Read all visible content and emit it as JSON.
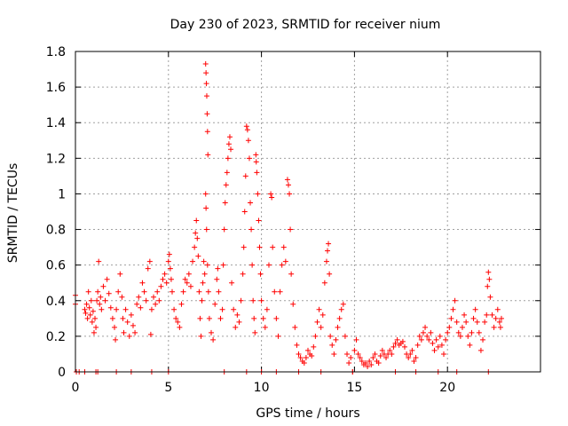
{
  "chart_data": {
    "type": "scatter",
    "title": "Day 230 of 2023, SRMTID for receiver nium",
    "xlabel": "GPS time / hours",
    "ylabel": "SRMTID / TECUs",
    "xlim": [
      0,
      25
    ],
    "ylim": [
      0,
      1.8
    ],
    "xticks": [
      0,
      5,
      10,
      15,
      20
    ],
    "yticks": [
      0,
      0.2,
      0.4,
      0.6,
      0.8,
      1,
      1.2,
      1.4,
      1.6,
      1.8
    ],
    "xtick_labels": [
      "0",
      "5",
      "10",
      "15",
      "20"
    ],
    "ytick_labels": [
      "0",
      "0.2",
      "0.4",
      "0.6",
      "0.8",
      "1",
      "1.2",
      "1.4",
      "1.6",
      "1.8"
    ],
    "grid": true,
    "marker": "+",
    "color": "#ff0000",
    "series": [
      {
        "name": "SRMTID",
        "points": [
          [
            0.0,
            0.43
          ],
          [
            0.0,
            0.38
          ],
          [
            0.05,
            0.0
          ],
          [
            0.2,
            0.0
          ],
          [
            0.5,
            0.0
          ],
          [
            1.1,
            0.0
          ],
          [
            0.5,
            0.35
          ],
          [
            0.55,
            0.33
          ],
          [
            0.6,
            0.38
          ],
          [
            0.65,
            0.3
          ],
          [
            0.7,
            0.45
          ],
          [
            0.75,
            0.36
          ],
          [
            0.8,
            0.32
          ],
          [
            0.85,
            0.4
          ],
          [
            0.9,
            0.28
          ],
          [
            0.95,
            0.34
          ],
          [
            1.0,
            0.22
          ],
          [
            1.05,
            0.3
          ],
          [
            1.1,
            0.25
          ],
          [
            1.15,
            0.4
          ],
          [
            1.2,
            0.45
          ],
          [
            1.25,
            0.62
          ],
          [
            1.3,
            0.38
          ],
          [
            1.35,
            0.42
          ],
          [
            1.4,
            0.35
          ],
          [
            1.5,
            0.48
          ],
          [
            1.6,
            0.4
          ],
          [
            1.7,
            0.52
          ],
          [
            1.8,
            0.44
          ],
          [
            1.9,
            0.36
          ],
          [
            2.0,
            0.3
          ],
          [
            2.1,
            0.25
          ],
          [
            2.15,
            0.18
          ],
          [
            2.2,
            0.35
          ],
          [
            2.3,
            0.45
          ],
          [
            2.4,
            0.55
          ],
          [
            2.5,
            0.42
          ],
          [
            2.55,
            0.3
          ],
          [
            2.6,
            0.22
          ],
          [
            2.7,
            0.35
          ],
          [
            2.8,
            0.28
          ],
          [
            2.9,
            0.2
          ],
          [
            3.0,
            0.32
          ],
          [
            3.1,
            0.26
          ],
          [
            3.2,
            0.22
          ],
          [
            3.3,
            0.38
          ],
          [
            3.4,
            0.42
          ],
          [
            3.5,
            0.36
          ],
          [
            3.6,
            0.5
          ],
          [
            3.7,
            0.45
          ],
          [
            3.8,
            0.4
          ],
          [
            3.9,
            0.58
          ],
          [
            4.0,
            0.62
          ],
          [
            4.05,
            0.21
          ],
          [
            4.1,
            0.35
          ],
          [
            4.2,
            0.42
          ],
          [
            4.3,
            0.38
          ],
          [
            4.4,
            0.45
          ],
          [
            4.5,
            0.4
          ],
          [
            4.6,
            0.48
          ],
          [
            4.7,
            0.52
          ],
          [
            4.8,
            0.55
          ],
          [
            4.9,
            0.5
          ],
          [
            5.0,
            0.62
          ],
          [
            5.05,
            0.66
          ],
          [
            5.1,
            0.58
          ],
          [
            5.15,
            0.52
          ],
          [
            5.2,
            0.45
          ],
          [
            5.3,
            0.35
          ],
          [
            5.4,
            0.3
          ],
          [
            5.5,
            0.28
          ],
          [
            5.6,
            0.25
          ],
          [
            5.7,
            0.38
          ],
          [
            5.8,
            0.45
          ],
          [
            5.9,
            0.52
          ],
          [
            6.0,
            0.5
          ],
          [
            6.1,
            0.55
          ],
          [
            6.2,
            0.48
          ],
          [
            6.3,
            0.62
          ],
          [
            6.4,
            0.7
          ],
          [
            6.45,
            0.78
          ],
          [
            6.5,
            0.85
          ],
          [
            6.55,
            0.75
          ],
          [
            6.6,
            0.65
          ],
          [
            6.65,
            0.45
          ],
          [
            6.7,
            0.3
          ],
          [
            6.75,
            0.2
          ],
          [
            6.8,
            0.4
          ],
          [
            6.85,
            0.5
          ],
          [
            6.9,
            0.62
          ],
          [
            6.95,
            0.55
          ],
          [
            7.0,
            1.73
          ],
          [
            7.02,
            1.68
          ],
          [
            7.04,
            1.62
          ],
          [
            7.06,
            1.55
          ],
          [
            7.08,
            1.45
          ],
          [
            7.1,
            1.35
          ],
          [
            7.12,
            1.22
          ],
          [
            7.0,
            1.0
          ],
          [
            7.02,
            0.92
          ],
          [
            7.05,
            0.8
          ],
          [
            7.1,
            0.6
          ],
          [
            7.15,
            0.45
          ],
          [
            7.2,
            0.3
          ],
          [
            7.3,
            0.22
          ],
          [
            7.4,
            0.18
          ],
          [
            7.5,
            0.38
          ],
          [
            7.6,
            0.52
          ],
          [
            7.65,
            0.58
          ],
          [
            7.7,
            0.45
          ],
          [
            7.8,
            0.3
          ],
          [
            7.9,
            0.35
          ],
          [
            7.95,
            0.6
          ],
          [
            8.0,
            0.8
          ],
          [
            8.05,
            0.95
          ],
          [
            8.1,
            1.05
          ],
          [
            8.15,
            1.12
          ],
          [
            8.2,
            1.2
          ],
          [
            8.25,
            1.28
          ],
          [
            8.3,
            1.32
          ],
          [
            8.35,
            1.25
          ],
          [
            8.4,
            0.5
          ],
          [
            8.5,
            0.35
          ],
          [
            8.6,
            0.25
          ],
          [
            8.7,
            0.32
          ],
          [
            8.8,
            0.28
          ],
          [
            8.9,
            0.4
          ],
          [
            9.0,
            0.55
          ],
          [
            9.05,
            0.7
          ],
          [
            9.1,
            0.9
          ],
          [
            9.15,
            1.1
          ],
          [
            9.2,
            1.38
          ],
          [
            9.25,
            1.36
          ],
          [
            9.3,
            1.3
          ],
          [
            9.35,
            1.2
          ],
          [
            9.4,
            0.95
          ],
          [
            9.45,
            0.8
          ],
          [
            9.5,
            0.6
          ],
          [
            9.55,
            0.4
          ],
          [
            9.6,
            0.3
          ],
          [
            9.65,
            0.22
          ],
          [
            9.7,
            1.22
          ],
          [
            9.72,
            1.18
          ],
          [
            9.75,
            1.12
          ],
          [
            9.8,
            1.0
          ],
          [
            9.85,
            0.85
          ],
          [
            9.9,
            0.7
          ],
          [
            9.95,
            0.55
          ],
          [
            10.0,
            0.4
          ],
          [
            10.1,
            0.3
          ],
          [
            10.2,
            0.25
          ],
          [
            10.3,
            0.35
          ],
          [
            10.4,
            0.6
          ],
          [
            10.5,
            1.0
          ],
          [
            10.55,
            0.98
          ],
          [
            10.6,
            0.7
          ],
          [
            10.7,
            0.45
          ],
          [
            10.8,
            0.3
          ],
          [
            10.9,
            0.2
          ],
          [
            11.0,
            0.45
          ],
          [
            11.1,
            0.6
          ],
          [
            11.2,
            0.7
          ],
          [
            11.3,
            0.62
          ],
          [
            11.4,
            1.08
          ],
          [
            11.45,
            1.05
          ],
          [
            11.5,
            1.0
          ],
          [
            11.55,
            0.8
          ],
          [
            11.6,
            0.55
          ],
          [
            11.7,
            0.38
          ],
          [
            11.8,
            0.25
          ],
          [
            11.9,
            0.15
          ],
          [
            12.0,
            0.1
          ],
          [
            12.1,
            0.08
          ],
          [
            12.2,
            0.06
          ],
          [
            12.3,
            0.05
          ],
          [
            12.4,
            0.08
          ],
          [
            12.5,
            0.12
          ],
          [
            12.6,
            0.1
          ],
          [
            12.7,
            0.09
          ],
          [
            12.8,
            0.14
          ],
          [
            12.9,
            0.2
          ],
          [
            13.0,
            0.28
          ],
          [
            13.1,
            0.35
          ],
          [
            13.2,
            0.25
          ],
          [
            13.3,
            0.32
          ],
          [
            13.4,
            0.5
          ],
          [
            13.5,
            0.62
          ],
          [
            13.55,
            0.68
          ],
          [
            13.6,
            0.72
          ],
          [
            13.65,
            0.55
          ],
          [
            13.7,
            0.2
          ],
          [
            13.8,
            0.15
          ],
          [
            13.9,
            0.1
          ],
          [
            14.0,
            0.18
          ],
          [
            14.1,
            0.25
          ],
          [
            14.2,
            0.3
          ],
          [
            14.3,
            0.35
          ],
          [
            14.4,
            0.38
          ],
          [
            14.5,
            0.2
          ],
          [
            14.6,
            0.1
          ],
          [
            14.7,
            0.05
          ],
          [
            14.8,
            0.08
          ],
          [
            14.9,
            0.0
          ],
          [
            15.0,
            0.12
          ],
          [
            15.1,
            0.18
          ],
          [
            15.2,
            0.1
          ],
          [
            15.3,
            0.08
          ],
          [
            15.4,
            0.06
          ],
          [
            15.5,
            0.04
          ],
          [
            15.6,
            0.05
          ],
          [
            15.7,
            0.03
          ],
          [
            15.8,
            0.06
          ],
          [
            15.9,
            0.04
          ],
          [
            16.0,
            0.08
          ],
          [
            16.1,
            0.1
          ],
          [
            16.2,
            0.06
          ],
          [
            16.3,
            0.05
          ],
          [
            16.4,
            0.09
          ],
          [
            16.5,
            0.12
          ],
          [
            16.6,
            0.1
          ],
          [
            16.7,
            0.08
          ],
          [
            16.8,
            0.1
          ],
          [
            16.9,
            0.12
          ],
          [
            17.0,
            0.1
          ],
          [
            17.1,
            0.14
          ],
          [
            17.2,
            0.16
          ],
          [
            17.3,
            0.18
          ],
          [
            17.4,
            0.15
          ],
          [
            17.5,
            0.16
          ],
          [
            17.6,
            0.17
          ],
          [
            17.7,
            0.14
          ],
          [
            17.8,
            0.1
          ],
          [
            17.9,
            0.08
          ],
          [
            18.0,
            0.1
          ],
          [
            18.1,
            0.12
          ],
          [
            18.2,
            0.06
          ],
          [
            18.3,
            0.08
          ],
          [
            18.4,
            0.15
          ],
          [
            18.5,
            0.2
          ],
          [
            18.6,
            0.18
          ],
          [
            18.7,
            0.22
          ],
          [
            18.8,
            0.25
          ],
          [
            18.9,
            0.2
          ],
          [
            19.0,
            0.18
          ],
          [
            19.1,
            0.22
          ],
          [
            19.2,
            0.16
          ],
          [
            19.3,
            0.12
          ],
          [
            19.4,
            0.18
          ],
          [
            19.5,
            0.14
          ],
          [
            19.6,
            0.2
          ],
          [
            19.7,
            0.15
          ],
          [
            19.8,
            0.1
          ],
          [
            19.9,
            0.18
          ],
          [
            20.0,
            0.22
          ],
          [
            20.1,
            0.25
          ],
          [
            20.2,
            0.3
          ],
          [
            20.3,
            0.35
          ],
          [
            20.4,
            0.4
          ],
          [
            20.5,
            0.28
          ],
          [
            20.6,
            0.22
          ],
          [
            20.7,
            0.2
          ],
          [
            20.8,
            0.25
          ],
          [
            20.9,
            0.32
          ],
          [
            21.0,
            0.28
          ],
          [
            21.1,
            0.2
          ],
          [
            21.2,
            0.15
          ],
          [
            21.3,
            0.22
          ],
          [
            21.4,
            0.3
          ],
          [
            21.5,
            0.35
          ],
          [
            21.6,
            0.28
          ],
          [
            21.7,
            0.22
          ],
          [
            21.8,
            0.12
          ],
          [
            21.9,
            0.18
          ],
          [
            22.0,
            0.28
          ],
          [
            22.1,
            0.32
          ],
          [
            22.15,
            0.48
          ],
          [
            22.2,
            0.56
          ],
          [
            22.25,
            0.52
          ],
          [
            22.3,
            0.42
          ],
          [
            22.4,
            0.32
          ],
          [
            22.5,
            0.25
          ],
          [
            22.6,
            0.3
          ],
          [
            22.7,
            0.35
          ],
          [
            22.8,
            0.28
          ],
          [
            22.85,
            0.25
          ],
          [
            22.9,
            0.3
          ],
          [
            1.2,
            0.0
          ],
          [
            2.2,
            0.0
          ],
          [
            3.0,
            0.0
          ],
          [
            4.1,
            0.0
          ],
          [
            5.0,
            0.0
          ],
          [
            8.0,
            0.0
          ],
          [
            9.2,
            0.0
          ],
          [
            10.0,
            0.0
          ],
          [
            10.8,
            0.0
          ],
          [
            12.0,
            0.0
          ],
          [
            13.2,
            0.0
          ],
          [
            14.9,
            0.0
          ],
          [
            17.2,
            0.0
          ],
          [
            18.3,
            0.0
          ],
          [
            19.5,
            0.0
          ],
          [
            20.5,
            0.0
          ],
          [
            22.2,
            0.0
          ]
        ]
      }
    ]
  }
}
